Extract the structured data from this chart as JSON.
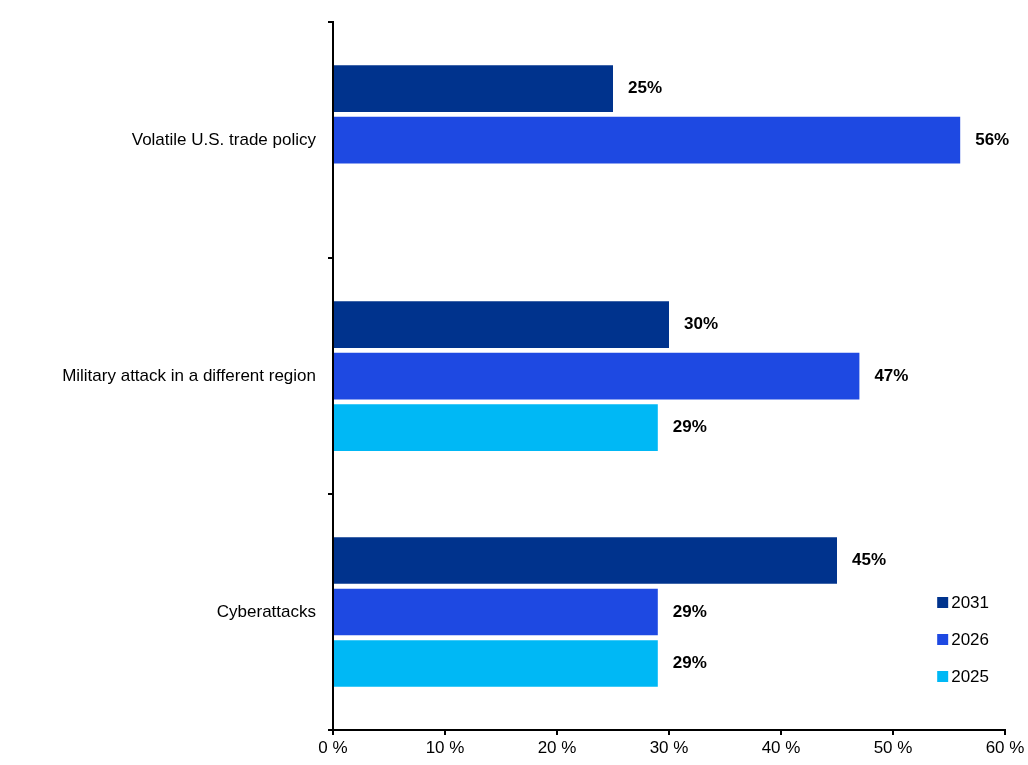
{
  "chart_data": {
    "type": "bar",
    "orientation": "horizontal",
    "categories": [
      "Volatile U.S. trade policy",
      "Military attack in a different region",
      "Cyberattacks"
    ],
    "series": [
      {
        "name": "2031",
        "color": "#00338d",
        "values": [
          25,
          30,
          45
        ],
        "value_labels": [
          "25%",
          "30%",
          "45%"
        ]
      },
      {
        "name": "2026",
        "color": "#1e49e2",
        "values": [
          56,
          47,
          29
        ],
        "value_labels": [
          "56%",
          "47%",
          "29%"
        ]
      },
      {
        "name": "2025",
        "color": "#00b8f5",
        "values": [
          null,
          29,
          29
        ],
        "value_labels": [
          null,
          "29%",
          "29%"
        ]
      }
    ],
    "xlim": [
      0,
      60
    ],
    "xticks": [
      {
        "value": 0,
        "label": "0 %"
      },
      {
        "value": 10,
        "label": "10 %"
      },
      {
        "value": 20,
        "label": "20 %"
      },
      {
        "value": 30,
        "label": "30 %"
      },
      {
        "value": 40,
        "label": "40 %"
      },
      {
        "value": 50,
        "label": "50 %"
      },
      {
        "value": 60,
        "label": "60 %"
      }
    ],
    "grid": false,
    "legend": "bottom right"
  }
}
